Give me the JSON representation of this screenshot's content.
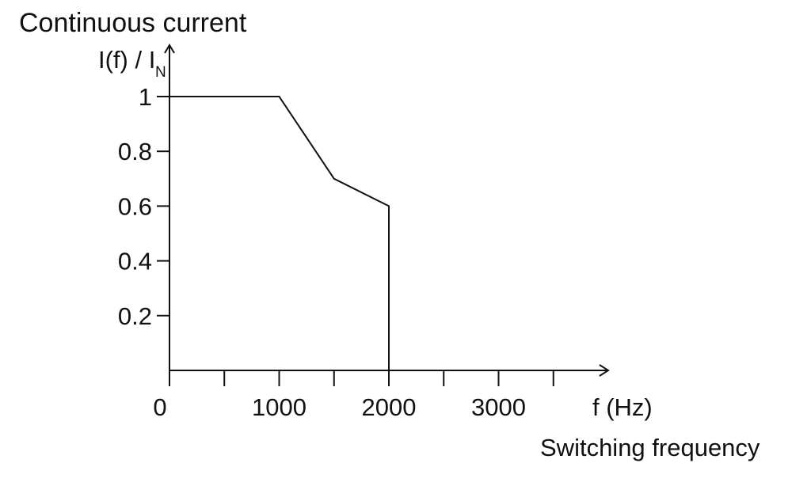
{
  "chart_data": {
    "type": "line",
    "title": "Continuous current",
    "ylabel": "I(f) / I",
    "ylabel_subscript": "N",
    "xlabel": "f (Hz)",
    "xlabel_caption": "Switching frequency",
    "xlim": [
      0,
      4000
    ],
    "ylim": [
      0,
      1
    ],
    "x_ticks": [
      0,
      500,
      1000,
      1500,
      2000,
      2500,
      3000,
      3500
    ],
    "x_tick_labels": [
      {
        "value": 0,
        "label": "0"
      },
      {
        "value": 1000,
        "label": "1000"
      },
      {
        "value": 2000,
        "label": "2000"
      },
      {
        "value": 3000,
        "label": "3000"
      }
    ],
    "y_ticks": [
      {
        "value": 0.2,
        "label": "0.2"
      },
      {
        "value": 0.4,
        "label": "0.4"
      },
      {
        "value": 0.6,
        "label": "0.6"
      },
      {
        "value": 0.8,
        "label": "0.8"
      },
      {
        "value": 1,
        "label": "1"
      }
    ],
    "grid": false,
    "series": [
      {
        "points": [
          {
            "x": 0,
            "y": 1
          },
          {
            "x": 1000,
            "y": 1
          },
          {
            "x": 1500,
            "y": 0.7
          },
          {
            "x": 2000,
            "y": 0.6
          },
          {
            "x": 2000,
            "y": 0
          }
        ],
        "color": "#111111"
      }
    ]
  }
}
